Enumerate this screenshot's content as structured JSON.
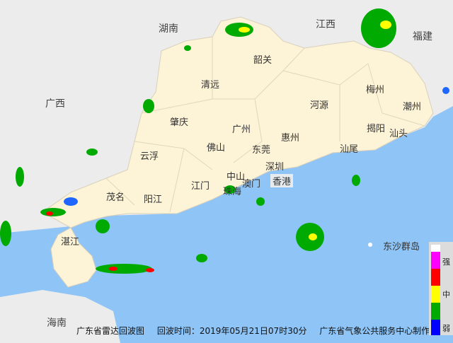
{
  "regions": [
    "湖南",
    "江西",
    "福建",
    "广西",
    "海南"
  ],
  "cities": [
    "韶关",
    "清远",
    "河源",
    "梅州",
    "潮州",
    "肇庆",
    "广州",
    "惠州",
    "揭阳",
    "汕头",
    "云浮",
    "佛山",
    "东莞",
    "汕尾",
    "深圳",
    "中山",
    "江门",
    "珠海",
    "澳门",
    "香港",
    "茂名",
    "阳江",
    "湛江"
  ],
  "islands": [
    "东沙群岛"
  ],
  "caption": {
    "title": "广东省雷达回波图",
    "time": "回波时间：2019年05月21日07时30分",
    "producer": "广东省气象公共服务中心制作"
  },
  "legend": {
    "labels": [
      "强",
      "中",
      "弱"
    ],
    "colors": [
      "#ffffff",
      "#ff00ff",
      "#ff0000",
      "#ffff00",
      "#00aa00",
      "#0000ff"
    ]
  },
  "colors": {
    "sea": "#8ec4f6",
    "land": "#ececec",
    "guangdong": "#fdf3d6"
  }
}
